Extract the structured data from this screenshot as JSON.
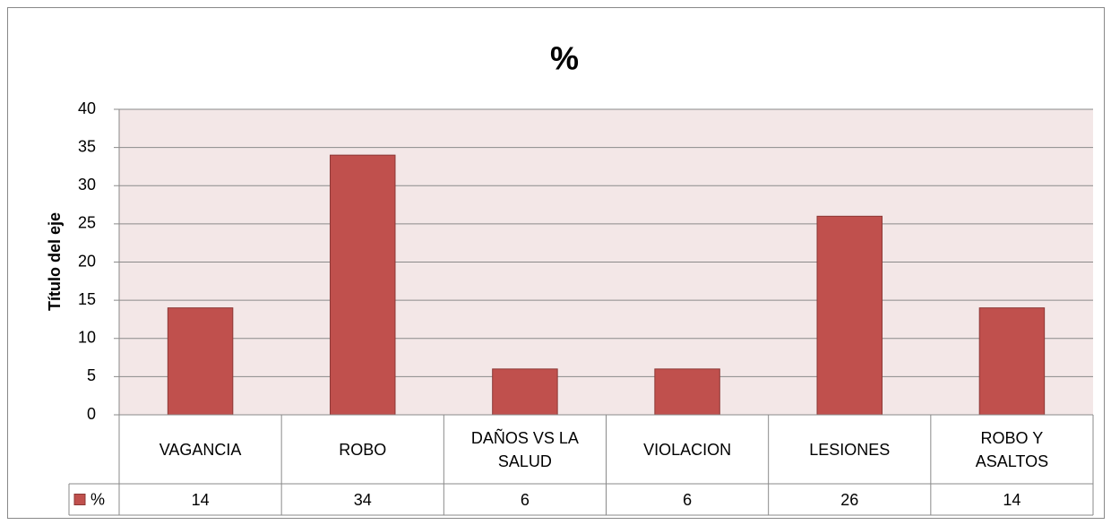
{
  "chart_data": {
    "type": "bar",
    "title": "%",
    "y_label": "Título del eje",
    "categories": [
      "VAGANCIA",
      "ROBO",
      "DAÑOS VS LA SALUD",
      "VIOLACION",
      "LESIONES",
      "ROBO Y ASALTOS"
    ],
    "series": [
      {
        "name": "%",
        "color": "#c0504d",
        "values": [
          14,
          34,
          6,
          6,
          26,
          14
        ]
      }
    ],
    "ylim": [
      0,
      40
    ],
    "yticks": [
      0,
      5,
      10,
      15,
      20,
      25,
      30,
      35,
      40
    ],
    "grid": true,
    "legend": "data-table"
  }
}
